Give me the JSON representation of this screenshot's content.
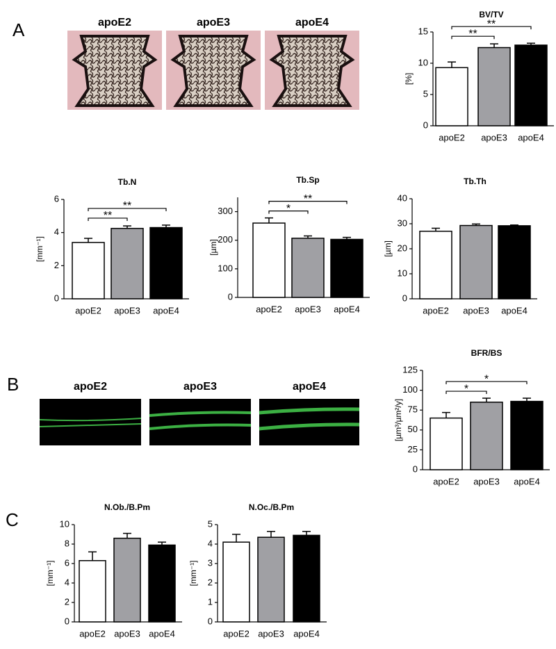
{
  "panels": [
    "A",
    "B",
    "C"
  ],
  "images": {
    "histology": [
      "apoE2",
      "apoE3",
      "apoE4"
    ],
    "fluorescence": [
      "apoE2",
      "apoE3",
      "apoE4"
    ]
  },
  "chart_data": [
    {
      "type": "bar",
      "title": "BV/TV",
      "ylabel": "[%]",
      "categories": [
        "apoE2",
        "apoE3",
        "apoE4"
      ],
      "values": [
        9.3,
        12.5,
        12.9
      ],
      "errors": [
        0.9,
        0.6,
        0.3
      ],
      "colors": [
        "#ffffff",
        "#a0a0a4",
        "#000000"
      ],
      "ylim": [
        0,
        15
      ],
      "yticks": [
        0,
        5,
        10,
        15
      ],
      "significance": [
        {
          "between": [
            "apoE2",
            "apoE3"
          ],
          "label": "**"
        },
        {
          "between": [
            "apoE2",
            "apoE4"
          ],
          "label": "**"
        }
      ]
    },
    {
      "type": "bar",
      "title": "Tb.N",
      "ylabel": "[mm⁻¹]",
      "categories": [
        "apoE2",
        "apoE3",
        "apoE4"
      ],
      "values": [
        3.4,
        4.25,
        4.3
      ],
      "errors": [
        0.25,
        0.15,
        0.15
      ],
      "colors": [
        "#ffffff",
        "#a0a0a4",
        "#000000"
      ],
      "ylim": [
        0,
        6
      ],
      "yticks": [
        0,
        2,
        4,
        6
      ],
      "significance": [
        {
          "between": [
            "apoE2",
            "apoE3"
          ],
          "label": "**"
        },
        {
          "between": [
            "apoE2",
            "apoE4"
          ],
          "label": "**"
        }
      ]
    },
    {
      "type": "bar",
      "title": "Tb.Sp",
      "ylabel": "[µm]",
      "categories": [
        "apoE2",
        "apoE3",
        "apoE4"
      ],
      "values": [
        260,
        207,
        203
      ],
      "errors": [
        18,
        8,
        7
      ],
      "colors": [
        "#ffffff",
        "#a0a0a4",
        "#000000"
      ],
      "ylim": [
        0,
        350
      ],
      "yticks": [
        0,
        100,
        200,
        300
      ],
      "significance": [
        {
          "between": [
            "apoE2",
            "apoE3"
          ],
          "label": "*"
        },
        {
          "between": [
            "apoE2",
            "apoE4"
          ],
          "label": "**"
        }
      ]
    },
    {
      "type": "bar",
      "title": "Tb.Th",
      "ylabel": "[µm]",
      "categories": [
        "apoE2",
        "apoE3",
        "apoE4"
      ],
      "values": [
        27,
        29.3,
        29.2
      ],
      "errors": [
        1.2,
        0.6,
        0.3
      ],
      "colors": [
        "#ffffff",
        "#a0a0a4",
        "#000000"
      ],
      "ylim": [
        0,
        40
      ],
      "yticks": [
        0,
        10,
        20,
        30,
        40
      ],
      "significance": []
    },
    {
      "type": "bar",
      "title": "BFR/BS",
      "ylabel": "[µm³/µm²/y]",
      "categories": [
        "apoE2",
        "apoE3",
        "apoE4"
      ],
      "values": [
        65,
        85,
        86
      ],
      "errors": [
        7,
        5,
        4
      ],
      "colors": [
        "#ffffff",
        "#a0a0a4",
        "#000000"
      ],
      "ylim": [
        0,
        125
      ],
      "yticks": [
        0,
        25,
        50,
        75,
        100,
        125
      ],
      "significance": [
        {
          "between": [
            "apoE2",
            "apoE3"
          ],
          "label": "*"
        },
        {
          "between": [
            "apoE2",
            "apoE4"
          ],
          "label": "*"
        }
      ]
    },
    {
      "type": "bar",
      "title": "N.Ob./B.Pm",
      "ylabel": "[mm⁻¹]",
      "categories": [
        "apoE2",
        "apoE3",
        "apoE4"
      ],
      "values": [
        6.3,
        8.6,
        7.9
      ],
      "errors": [
        0.9,
        0.5,
        0.3
      ],
      "colors": [
        "#ffffff",
        "#a0a0a4",
        "#000000"
      ],
      "ylim": [
        0,
        10
      ],
      "yticks": [
        0,
        2,
        4,
        6,
        8,
        10
      ],
      "significance": []
    },
    {
      "type": "bar",
      "title": "N.Oc./B.Pm",
      "ylabel": "[mm⁻¹]",
      "categories": [
        "apoE2",
        "apoE3",
        "apoE4"
      ],
      "values": [
        4.1,
        4.35,
        4.45
      ],
      "errors": [
        0.4,
        0.3,
        0.2
      ],
      "colors": [
        "#ffffff",
        "#a0a0a4",
        "#000000"
      ],
      "ylim": [
        0,
        5
      ],
      "yticks": [
        0,
        1,
        2,
        3,
        4,
        5
      ],
      "significance": []
    }
  ]
}
